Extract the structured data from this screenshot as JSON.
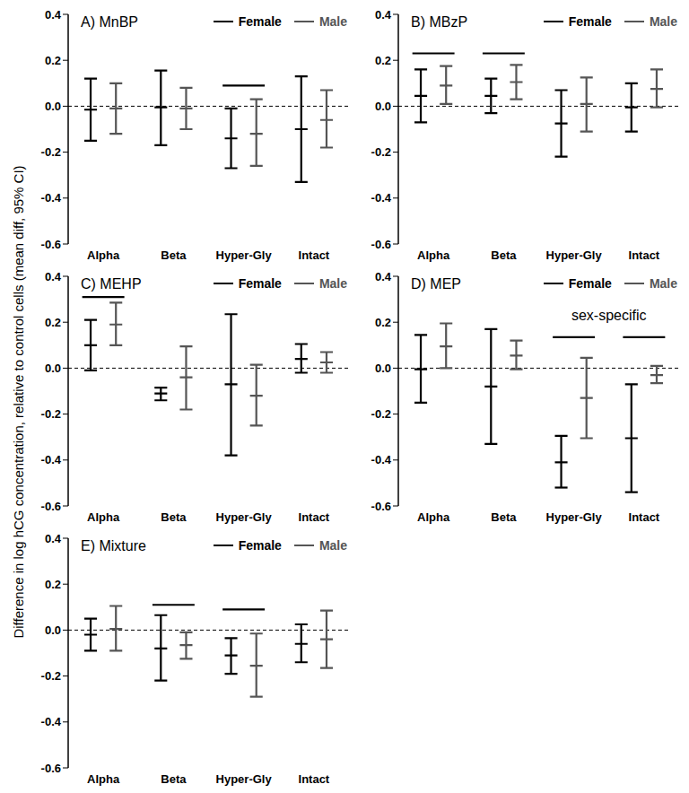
{
  "ylabel": "Difference in log hCG concentration, relative to control cells (mean diff, 95% CI)",
  "chart_data": [
    {
      "type": "errorbar",
      "title": "A) MnBP",
      "categories": [
        "Alpha",
        "Beta",
        "Hyper-Gly",
        "Intact"
      ],
      "ylim": [
        -0.6,
        0.4
      ],
      "yticks": [
        -0.6,
        -0.4,
        -0.2,
        {
          "value": 0,
          "label": "0.0"
        },
        0.2,
        0.4
      ],
      "series": [
        {
          "name": "Female",
          "color": "#000000",
          "values": [
            -0.015,
            -0.005,
            -0.14,
            -0.1
          ],
          "ci_low": [
            -0.15,
            -0.17,
            -0.27,
            -0.33
          ],
          "ci_high": [
            0.12,
            0.155,
            -0.01,
            0.13
          ]
        },
        {
          "name": "Male",
          "color": "#555555",
          "values": [
            -0.01,
            -0.01,
            -0.12,
            -0.06
          ],
          "ci_low": [
            -0.12,
            -0.1,
            -0.26,
            -0.18
          ],
          "ci_high": [
            0.1,
            0.08,
            0.03,
            0.07
          ]
        }
      ],
      "significance_lines": [
        {
          "category": "Hyper-Gly",
          "y": 0.09
        }
      ]
    },
    {
      "type": "errorbar",
      "title": "B) MBzP",
      "categories": [
        "Alpha",
        "Beta",
        "Hyper-Gly",
        "Intact"
      ],
      "ylim": [
        -0.6,
        0.4
      ],
      "yticks": [
        -0.6,
        -0.4,
        -0.2,
        {
          "value": 0,
          "label": "0.0"
        },
        0.2,
        0.4
      ],
      "series": [
        {
          "name": "Female",
          "color": "#000000",
          "values": [
            0.045,
            0.045,
            -0.075,
            -0.005
          ],
          "ci_low": [
            -0.07,
            -0.03,
            -0.22,
            -0.11
          ],
          "ci_high": [
            0.16,
            0.12,
            0.07,
            0.1
          ]
        },
        {
          "name": "Male",
          "color": "#555555",
          "values": [
            0.09,
            0.105,
            0.01,
            0.075
          ],
          "ci_low": [
            0.01,
            0.03,
            -0.11,
            -0.005
          ],
          "ci_high": [
            0.175,
            0.18,
            0.125,
            0.16
          ]
        }
      ],
      "significance_lines": [
        {
          "category": "Alpha",
          "y": 0.23
        },
        {
          "category": "Beta",
          "y": 0.23
        }
      ]
    },
    {
      "type": "errorbar",
      "title": "C) MEHP",
      "categories": [
        "Alpha",
        "Beta",
        "Hyper-Gly",
        "Intact"
      ],
      "ylim": [
        -0.6,
        0.4
      ],
      "yticks": [
        -0.6,
        -0.4,
        -0.2,
        {
          "value": 0,
          "label": "0.0"
        },
        0.2,
        0.4
      ],
      "series": [
        {
          "name": "Female",
          "color": "#000000",
          "values": [
            0.1,
            -0.11,
            -0.07,
            0.04
          ],
          "ci_low": [
            -0.01,
            -0.14,
            -0.38,
            -0.02
          ],
          "ci_high": [
            0.21,
            -0.085,
            0.235,
            0.105
          ]
        },
        {
          "name": "Male",
          "color": "#555555",
          "values": [
            0.19,
            -0.04,
            -0.12,
            0.025
          ],
          "ci_low": [
            0.1,
            -0.18,
            -0.25,
            -0.02
          ],
          "ci_high": [
            0.285,
            0.095,
            0.015,
            0.07
          ]
        }
      ],
      "significance_lines": [
        {
          "category": "Alpha",
          "y": 0.31
        }
      ]
    },
    {
      "type": "errorbar",
      "title": "D) MEP",
      "categories": [
        "Alpha",
        "Beta",
        "Hyper-Gly",
        "Intact"
      ],
      "ylim": [
        -0.6,
        0.4
      ],
      "yticks": [
        -0.6,
        -0.4,
        -0.2,
        {
          "value": 0,
          "label": "0.0"
        },
        0.2,
        0.4
      ],
      "series": [
        {
          "name": "Female",
          "color": "#000000",
          "values": [
            -0.005,
            -0.08,
            -0.41,
            -0.305
          ],
          "ci_low": [
            -0.15,
            -0.33,
            -0.52,
            -0.54
          ],
          "ci_high": [
            0.145,
            0.17,
            -0.295,
            -0.07
          ]
        },
        {
          "name": "Male",
          "color": "#555555",
          "values": [
            0.095,
            0.055,
            -0.13,
            -0.03
          ],
          "ci_low": [
            0.0,
            -0.005,
            -0.305,
            -0.065
          ],
          "ci_high": [
            0.195,
            0.12,
            0.045,
            0.01
          ]
        }
      ],
      "significance_lines": [
        {
          "category": "Hyper-Gly",
          "y": 0.135
        },
        {
          "category": "Intact",
          "y": 0.135
        }
      ],
      "annotations": [
        {
          "text": "sex-specific",
          "categories": [
            "Hyper-Gly",
            "Intact"
          ],
          "y": 0.23
        }
      ]
    },
    {
      "type": "errorbar",
      "title": "E) Mixture",
      "categories": [
        "Alpha",
        "Beta",
        "Hyper-Gly",
        "Intact"
      ],
      "ylim": [
        -0.6,
        0.4
      ],
      "yticks": [
        -0.6,
        -0.4,
        -0.2,
        {
          "value": 0,
          "label": "0.0"
        },
        0.2,
        0.4
      ],
      "series": [
        {
          "name": "Female",
          "color": "#000000",
          "values": [
            -0.02,
            -0.08,
            -0.11,
            -0.06
          ],
          "ci_low": [
            -0.09,
            -0.22,
            -0.19,
            -0.14
          ],
          "ci_high": [
            0.05,
            0.065,
            -0.035,
            0.025
          ]
        },
        {
          "name": "Male",
          "color": "#555555",
          "values": [
            0.005,
            -0.065,
            -0.155,
            -0.04
          ],
          "ci_low": [
            -0.09,
            -0.125,
            -0.29,
            -0.165
          ],
          "ci_high": [
            0.105,
            -0.01,
            -0.015,
            0.085
          ]
        }
      ],
      "significance_lines": [
        {
          "category": "Beta",
          "y": 0.11
        },
        {
          "category": "Hyper-Gly",
          "y": 0.09
        }
      ]
    }
  ]
}
